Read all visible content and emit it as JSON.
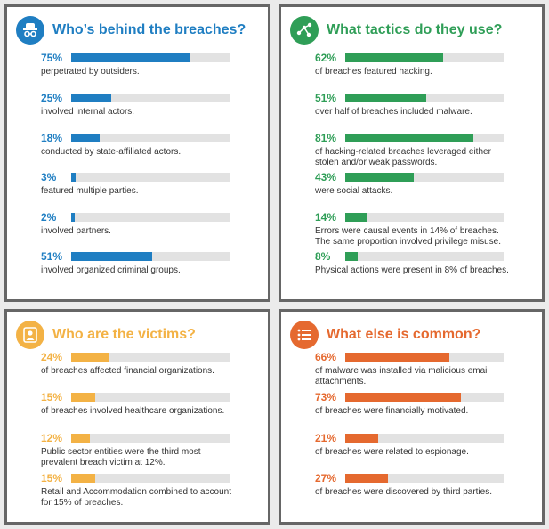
{
  "colors": {
    "blue": "#1f7ec2",
    "green": "#2f9e57",
    "yellow": "#f3b245",
    "orange": "#e5692f"
  },
  "chart_data": [
    {
      "type": "bar",
      "title": "Who’s behind the breaches?",
      "icon": "hacker-icon",
      "color": "#1f7ec2",
      "categories": [
        "perpetrated by outsiders.",
        "involved internal actors.",
        "conducted by state-affiliated actors.",
        "featured multiple parties.",
        "involved partners.",
        "involved organized criminal groups."
      ],
      "labels": [
        "75%",
        "25%",
        "18%",
        "3%",
        "2%",
        "51%"
      ],
      "values": [
        75,
        25,
        18,
        3,
        2,
        51
      ]
    },
    {
      "type": "bar",
      "title": "What tactics do they use?",
      "icon": "network-icon",
      "color": "#2f9e57",
      "categories": [
        "of breaches featured hacking.",
        "over half of breaches included malware.",
        "of hacking-related breaches leveraged either stolen and/or weak passwords.",
        "were social attacks.",
        "Errors were causal events in 14% of breaches. The same proportion involved privilege misuse.",
        "Physical actions were present in 8% of breaches."
      ],
      "labels": [
        "62%",
        "51%",
        "81%",
        "43%",
        "14%",
        "8%"
      ],
      "values": [
        62,
        51,
        81,
        43,
        14,
        8
      ]
    },
    {
      "type": "bar",
      "title": "Who are the victims?",
      "icon": "person-icon",
      "color": "#f3b245",
      "categories": [
        "of breaches affected financial organizations.",
        "of breaches involved healthcare organizations.",
        "Public sector entities were the third most prevalent breach victim at 12%.",
        "Retail and Accommodation combined to account for 15% of breaches."
      ],
      "labels": [
        "24%",
        "15%",
        "12%",
        "15%"
      ],
      "values": [
        24,
        15,
        12,
        15
      ]
    },
    {
      "type": "bar",
      "title": "What else is common?",
      "icon": "list-icon",
      "color": "#e5692f",
      "categories": [
        "of malware was installed via malicious email attachments.",
        "of breaches were financially motivated.",
        "of breaches were related to espionage.",
        "of breaches were discovered by third parties."
      ],
      "labels": [
        "66%",
        "73%",
        "21%",
        "27%"
      ],
      "values": [
        66,
        73,
        21,
        27
      ]
    }
  ]
}
